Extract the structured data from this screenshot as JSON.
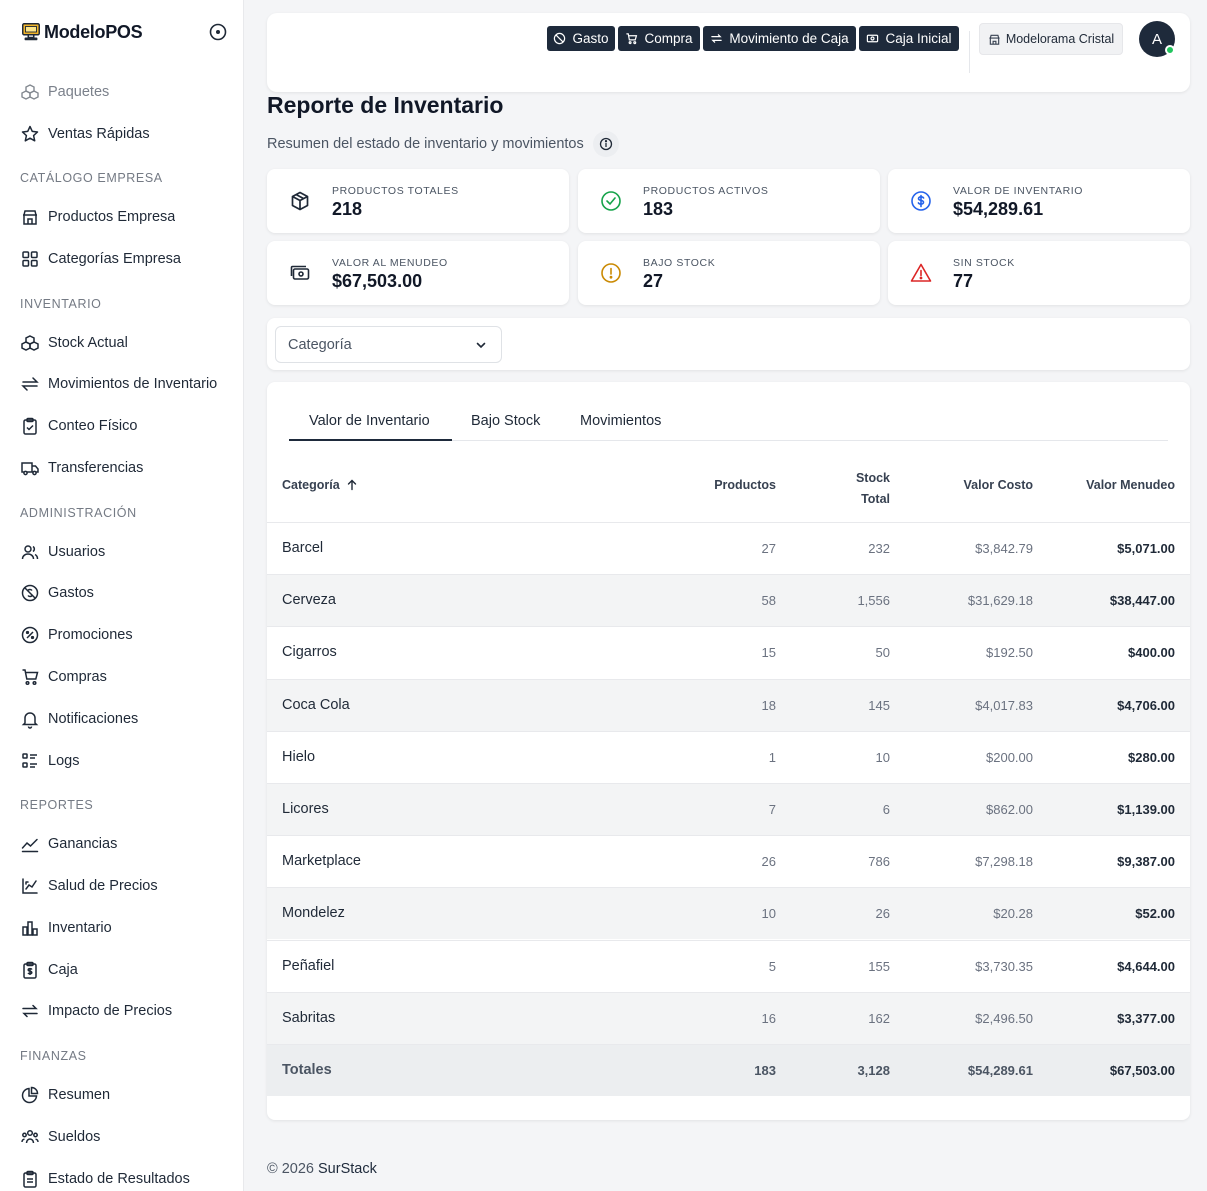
{
  "sidebar": {
    "brand": "ModeloPOS",
    "items": [
      {
        "label": "Paquetes",
        "icon": "packages-icon"
      },
      {
        "label": "Ventas Rápidas",
        "icon": "star-icon"
      },
      {
        "label": "Productos Empresa",
        "icon": "store-icon"
      },
      {
        "label": "Categorías Empresa",
        "icon": "categories-icon"
      },
      {
        "label": "Stock Actual",
        "icon": "stock-icon"
      },
      {
        "label": "Movimientos de Inventario",
        "icon": "arrows-icon"
      },
      {
        "label": "Conteo Físico",
        "icon": "clipboard-check-icon"
      },
      {
        "label": "Transferencias",
        "icon": "truck-icon"
      },
      {
        "label": "Usuarios",
        "icon": "users-icon"
      },
      {
        "label": "Gastos",
        "icon": "no-money-icon"
      },
      {
        "label": "Promociones",
        "icon": "percent-icon"
      },
      {
        "label": "Compras",
        "icon": "cart-icon"
      },
      {
        "label": "Notificaciones",
        "icon": "bell-icon"
      },
      {
        "label": "Logs",
        "icon": "list-icon"
      },
      {
        "label": "Ganancias",
        "icon": "trend-icon"
      },
      {
        "label": "Salud de Precios",
        "icon": "chart-line-icon"
      },
      {
        "label": "Inventario",
        "icon": "bar-chart-icon"
      },
      {
        "label": "Caja",
        "icon": "cash-register-icon"
      },
      {
        "label": "Impacto de Precios",
        "icon": "swap-icon"
      },
      {
        "label": "Resumen",
        "icon": "pie-icon"
      },
      {
        "label": "Sueldos",
        "icon": "team-icon"
      },
      {
        "label": "Estado de Resultados",
        "icon": "report-icon"
      }
    ],
    "sections": [
      "Catálogo Empresa",
      "Inventario",
      "Administración",
      "Reportes",
      "Finanzas"
    ]
  },
  "topbar": {
    "actions": [
      "Gasto",
      "Compra",
      "Movimiento de Caja",
      "Caja Inicial"
    ],
    "store": "Modelorama Cristal",
    "avatar": "A"
  },
  "page": {
    "title": "Reporte de Inventario",
    "subtitle": "Resumen del estado de inventario y movimientos"
  },
  "stats": [
    {
      "label": "Productos Totales",
      "value": "218",
      "icon": "box-icon",
      "color": "#1f2937"
    },
    {
      "label": "Productos Activos",
      "value": "183",
      "icon": "check-circle-icon",
      "color": "#16a34a"
    },
    {
      "label": "Valor de Inventario",
      "value": "$54,289.61",
      "icon": "dollar-circle-icon",
      "color": "#2563eb"
    },
    {
      "label": "Valor al Menudeo",
      "value": "$67,503.00",
      "icon": "cash-icon",
      "color": "#1f2937"
    },
    {
      "label": "Bajo Stock",
      "value": "27",
      "icon": "alert-circle-icon",
      "color": "#ca8a04"
    },
    {
      "label": "Sin Stock",
      "value": "77",
      "icon": "warning-triangle-icon",
      "color": "#dc2626"
    }
  ],
  "filter": {
    "category_placeholder": "Categoría"
  },
  "tabs": [
    "Valor de Inventario",
    "Bajo Stock",
    "Movimientos"
  ],
  "table": {
    "headers": {
      "categoria": "Categoría",
      "productos": "Productos",
      "stock_line1": "Stock",
      "stock_line2": "Total",
      "costo": "Valor Costo",
      "menudeo": "Valor Menudeo"
    },
    "rows": [
      {
        "categoria": "Barcel",
        "productos": "27",
        "stock": "232",
        "costo": "$3,842.79",
        "menudeo": "$5,071.00"
      },
      {
        "categoria": "Cerveza",
        "productos": "58",
        "stock": "1,556",
        "costo": "$31,629.18",
        "menudeo": "$38,447.00"
      },
      {
        "categoria": "Cigarros",
        "productos": "15",
        "stock": "50",
        "costo": "$192.50",
        "menudeo": "$400.00"
      },
      {
        "categoria": "Coca Cola",
        "productos": "18",
        "stock": "145",
        "costo": "$4,017.83",
        "menudeo": "$4,706.00"
      },
      {
        "categoria": "Hielo",
        "productos": "1",
        "stock": "10",
        "costo": "$200.00",
        "menudeo": "$280.00"
      },
      {
        "categoria": "Licores",
        "productos": "7",
        "stock": "6",
        "costo": "$862.00",
        "menudeo": "$1,139.00"
      },
      {
        "categoria": "Marketplace",
        "productos": "26",
        "stock": "786",
        "costo": "$7,298.18",
        "menudeo": "$9,387.00"
      },
      {
        "categoria": "Mondelez",
        "productos": "10",
        "stock": "26",
        "costo": "$20.28",
        "menudeo": "$52.00"
      },
      {
        "categoria": "Peñafiel",
        "productos": "5",
        "stock": "155",
        "costo": "$3,730.35",
        "menudeo": "$4,644.00"
      },
      {
        "categoria": "Sabritas",
        "productos": "16",
        "stock": "162",
        "costo": "$2,496.50",
        "menudeo": "$3,377.00"
      }
    ],
    "totals": {
      "categoria": "Totales",
      "productos": "183",
      "stock": "3,128",
      "costo": "$54,289.61",
      "menudeo": "$67,503.00"
    }
  },
  "footer": {
    "copyright": "© 2026",
    "company": "SurStack"
  }
}
